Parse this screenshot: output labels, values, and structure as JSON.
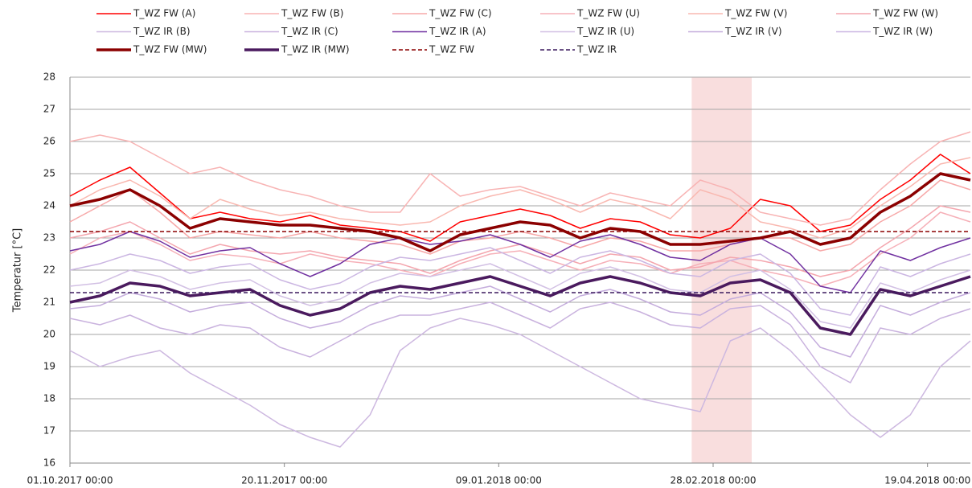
{
  "chart_data": {
    "type": "line",
    "ylabel": "Temperatur [°C]",
    "ylim": [
      16,
      28
    ],
    "yticks": [
      16,
      17,
      18,
      19,
      20,
      21,
      22,
      23,
      24,
      25,
      26,
      27,
      28
    ],
    "xlim": [
      "01.10.2017 00:00",
      "29.04.2018 00:00"
    ],
    "xticks": [
      "01.10.2017 00:00",
      "20.11.2017 00:00",
      "09.01.2018 00:00",
      "28.02.2018 00:00",
      "19.04.2018 00:00"
    ],
    "grid": true,
    "legend": "top",
    "highlight": {
      "range": [
        "23.02.2018 00:00",
        "09.03.2018 00:00"
      ],
      "color": "#f9dede"
    },
    "x": [
      "01.10.2017 00:00",
      "08.10.2017 00:00",
      "15.10.2017 00:00",
      "22.10.2017 00:00",
      "29.10.2017 00:00",
      "05.11.2017 00:00",
      "12.11.2017 00:00",
      "19.11.2017 00:00",
      "26.11.2017 00:00",
      "03.12.2017 00:00",
      "10.12.2017 00:00",
      "17.12.2017 00:00",
      "24.12.2017 00:00",
      "31.12.2017 00:00",
      "07.01.2018 00:00",
      "14.01.2018 00:00",
      "21.01.2018 00:00",
      "28.01.2018 00:00",
      "04.02.2018 00:00",
      "11.02.2018 00:00",
      "18.02.2018 00:00",
      "25.02.2018 00:00",
      "04.03.2018 00:00",
      "11.03.2018 00:00",
      "18.03.2018 00:00",
      "25.03.2018 00:00",
      "01.04.2018 00:00",
      "08.04.2018 00:00",
      "15.04.2018 00:00",
      "22.04.2018 00:00",
      "29.04.2018 00:00"
    ],
    "series": [
      {
        "name": "T_WZ FW (A)",
        "color": "#ff0000",
        "width": 1.5,
        "values": [
          24.3,
          24.8,
          25.2,
          24.4,
          23.6,
          23.8,
          23.6,
          23.5,
          23.7,
          23.4,
          23.3,
          23.2,
          22.9,
          23.5,
          23.7,
          23.9,
          23.7,
          23.3,
          23.6,
          23.5,
          23.1,
          23.0,
          23.3,
          24.2,
          24.0,
          23.2,
          23.4,
          24.2,
          24.8,
          25.6,
          25.0
        ]
      },
      {
        "name": "T_WZ FW (B)",
        "color": "#f8b4b4",
        "width": 1.5,
        "values": [
          26.0,
          26.2,
          26.0,
          25.5,
          25.0,
          25.2,
          24.8,
          24.5,
          24.3,
          24.0,
          23.8,
          23.8,
          25.0,
          24.3,
          24.5,
          24.6,
          24.3,
          24.0,
          24.4,
          24.2,
          24.0,
          24.8,
          24.5,
          23.8,
          23.6,
          23.4,
          23.6,
          24.5,
          25.3,
          26.0,
          26.3
        ]
      },
      {
        "name": "T_WZ FW (C)",
        "color": "#f7a8a8",
        "width": 1.5,
        "values": [
          23.5,
          24,
          24.5,
          23.8,
          23,
          23.2,
          23.1,
          23,
          23.2,
          23,
          22.9,
          22.8,
          22.5,
          22.9,
          23,
          23.2,
          23,
          22.7,
          23,
          22.9,
          22.6,
          22.6,
          22.8,
          23,
          23,
          22.6,
          22.8,
          23.5,
          24,
          24.8,
          24.5
        ]
      },
      {
        "name": "T_WZ FW (U)",
        "color": "#f6b0b8",
        "width": 1.5,
        "values": [
          22.5,
          23,
          23.2,
          22.8,
          22.3,
          22.5,
          22.4,
          22.2,
          22.5,
          22.3,
          22.2,
          22,
          21.8,
          22.2,
          22.5,
          22.6,
          22.3,
          22,
          22.3,
          22.2,
          21.9,
          22.2,
          22.3,
          22,
          21.8,
          21.5,
          21.8,
          22.5,
          23,
          23.8,
          23.5
        ]
      },
      {
        "name": "T_WZ FW (V)",
        "color": "#f9b8b0",
        "width": 1.5,
        "values": [
          24,
          24.5,
          24.8,
          24.3,
          23.6,
          24.2,
          23.9,
          23.7,
          23.8,
          23.6,
          23.5,
          23.4,
          23.5,
          24,
          24.3,
          24.5,
          24.2,
          23.8,
          24.2,
          24,
          23.6,
          24.5,
          24.2,
          23.5,
          23.3,
          23,
          23.3,
          24,
          24.6,
          25.3,
          25.5
        ]
      },
      {
        "name": "T_WZ FW (W)",
        "color": "#f4a6ae",
        "width": 1.5,
        "values": [
          23,
          23.2,
          23.5,
          23,
          22.5,
          22.8,
          22.6,
          22.5,
          22.6,
          22.4,
          22.3,
          22.2,
          21.9,
          22.3,
          22.6,
          22.8,
          22.5,
          22.2,
          22.5,
          22.4,
          22,
          22.1,
          22.4,
          22.3,
          22.1,
          21.8,
          22,
          22.7,
          23.3,
          24,
          23.8
        ]
      },
      {
        "name": "T_WZ IR (B)",
        "color": "#cdb8e0",
        "width": 1.5,
        "values": [
          19.5,
          19.0,
          19.3,
          19.5,
          18.8,
          18.3,
          17.8,
          17.2,
          16.8,
          16.5,
          17.5,
          19.5,
          20.2,
          20.5,
          20.3,
          20,
          19.5,
          19,
          18.5,
          18,
          17.8,
          17.6,
          19.8,
          20.2,
          19.5,
          18.5,
          17.5,
          16.8,
          17.5,
          19,
          19.8
        ]
      },
      {
        "name": "T_WZ IR (C)",
        "color": "#c9b2de",
        "width": 1.5,
        "values": [
          20.5,
          20.3,
          20.6,
          20.2,
          20,
          20.3,
          20.2,
          19.6,
          19.3,
          19.8,
          20.3,
          20.6,
          20.6,
          20.8,
          21,
          20.6,
          20.2,
          20.8,
          21,
          20.7,
          20.3,
          20.2,
          20.8,
          20.9,
          20.3,
          19,
          18.5,
          20.2,
          20,
          20.5,
          20.8
        ]
      },
      {
        "name": "T_WZ IR (A)",
        "color": "#7030a0",
        "width": 1.5,
        "values": [
          22.6,
          22.8,
          23.2,
          22.9,
          22.4,
          22.6,
          22.7,
          22.2,
          21.8,
          22.2,
          22.8,
          23,
          22.8,
          22.9,
          23.1,
          22.8,
          22.4,
          22.9,
          23.1,
          22.8,
          22.4,
          22.3,
          22.8,
          23,
          22.5,
          21.5,
          21.3,
          22.6,
          22.3,
          22.7,
          23
        ]
      },
      {
        "name": "T_WZ IR (U)",
        "color": "#d2c0e4",
        "width": 1.5,
        "values": [
          21.5,
          21.6,
          22,
          21.8,
          21.4,
          21.6,
          21.7,
          21.2,
          20.9,
          21.1,
          21.6,
          21.9,
          21.8,
          22,
          22.2,
          21.8,
          21.4,
          21.9,
          22.1,
          21.8,
          21.4,
          21.3,
          21.8,
          22,
          21.4,
          20.4,
          20.2,
          21.6,
          21.3,
          21.7,
          22
        ]
      },
      {
        "name": "T_WZ IR (V)",
        "color": "#c4acdc",
        "width": 1.5,
        "values": [
          20.8,
          20.9,
          21.3,
          21.1,
          20.7,
          20.9,
          21,
          20.5,
          20.2,
          20.4,
          20.9,
          21.2,
          21.1,
          21.3,
          21.5,
          21.1,
          20.7,
          21.2,
          21.4,
          21.1,
          20.7,
          20.6,
          21.1,
          21.3,
          20.7,
          19.6,
          19.3,
          20.9,
          20.6,
          21,
          21.3
        ]
      },
      {
        "name": "T_WZ IR (W)",
        "color": "#cbb6e2",
        "width": 1.5,
        "values": [
          22,
          22.2,
          22.5,
          22.3,
          21.9,
          22.1,
          22.2,
          21.7,
          21.4,
          21.6,
          22.1,
          22.4,
          22.3,
          22.5,
          22.7,
          22.3,
          21.9,
          22.4,
          22.6,
          22.3,
          21.9,
          21.8,
          22.3,
          22.5,
          21.9,
          20.8,
          20.6,
          22.1,
          21.8,
          22.2,
          22.5
        ]
      },
      {
        "name": "T_WZ FW (MW)",
        "color": "#8b0000",
        "width": 3.5,
        "values": [
          24.0,
          24.2,
          24.5,
          24.0,
          23.3,
          23.6,
          23.5,
          23.4,
          23.4,
          23.3,
          23.2,
          23.0,
          22.6,
          23.1,
          23.3,
          23.5,
          23.4,
          23.0,
          23.3,
          23.2,
          22.8,
          22.8,
          22.9,
          23.0,
          23.2,
          22.8,
          23.0,
          23.8,
          24.3,
          25.0,
          24.8
        ]
      },
      {
        "name": "T_WZ IR (MW)",
        "color": "#4a1a5e",
        "width": 3.5,
        "values": [
          21.0,
          21.2,
          21.6,
          21.5,
          21.2,
          21.3,
          21.4,
          20.9,
          20.6,
          20.8,
          21.3,
          21.5,
          21.4,
          21.6,
          21.8,
          21.5,
          21.2,
          21.6,
          21.8,
          21.6,
          21.3,
          21.2,
          21.6,
          21.7,
          21.3,
          20.2,
          20.0,
          21.4,
          21.2,
          21.5,
          21.8
        ]
      },
      {
        "name": "T_WZ FW",
        "color": "#8b0000",
        "width": 1.5,
        "dash": true,
        "level": 23.2
      },
      {
        "name": "T_WZ IR",
        "color": "#3b1a5e",
        "width": 1.5,
        "dash": true,
        "level": 21.3
      }
    ]
  }
}
